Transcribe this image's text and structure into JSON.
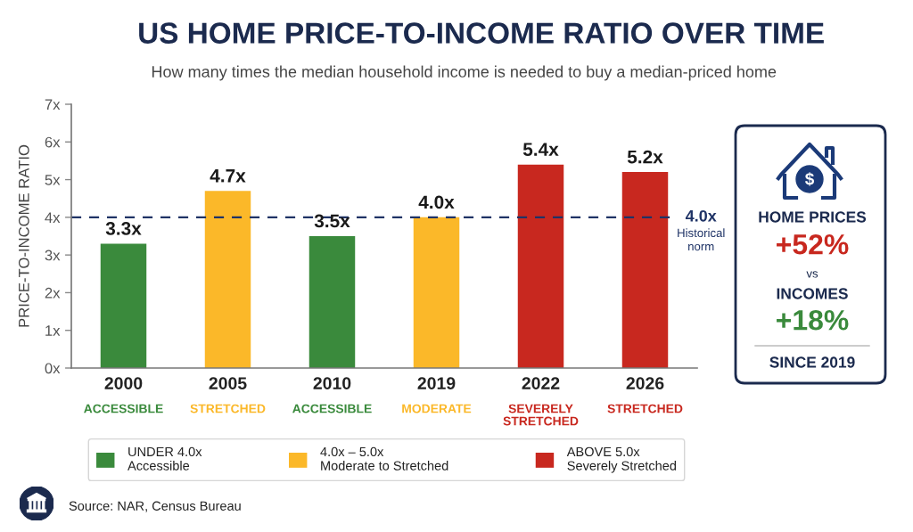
{
  "chart_data": [
    {
      "type": "bar",
      "title": "US HOME PRICE-TO-INCOME RATIO OVER TIME",
      "subtitle": "How many times the median household income is needed to buy a median-priced home",
      "ylabel": "PRICE-TO-INCOME RATIO",
      "categories": [
        "2000",
        "2005",
        "2010",
        "2019",
        "2022",
        "2026"
      ],
      "series": [
        {
          "name": "UNDER 4.0x\nAccessible",
          "color": "#3a8a3c",
          "values": [
            3.3,
            null,
            3.5,
            null,
            null,
            null
          ],
          "value_labels": [
            "3.3x",
            null,
            "3.5x",
            null,
            null,
            null
          ]
        },
        {
          "name": "4.0x – 5.0x\nModerate to Stretched",
          "color": "#fbb829",
          "values": [
            null,
            4.7,
            null,
            4.0,
            null,
            null
          ],
          "value_labels": [
            null,
            "4.7x",
            null,
            "4.0x",
            null,
            null
          ]
        },
        {
          "name": "ABOVE 5.0x\nSeverely Stretched",
          "color": "#c8281f",
          "values": [
            null,
            null,
            null,
            null,
            5.4,
            5.2
          ],
          "value_labels": [
            null,
            null,
            null,
            null,
            "5.4x",
            "5.2x"
          ]
        }
      ],
      "stacked": true,
      "ylim": [
        0,
        7
      ],
      "yticks": [
        {
          "value": 0,
          "label": "0x"
        },
        {
          "value": 1,
          "label": "1x"
        },
        {
          "value": 2,
          "label": "2x"
        },
        {
          "value": 3,
          "label": "3x"
        },
        {
          "value": 4,
          "label": "4x"
        },
        {
          "value": 5,
          "label": "5x"
        },
        {
          "value": 6,
          "label": "6x"
        },
        {
          "value": 7,
          "label": "7x"
        }
      ],
      "ref_lines": [
        {
          "axis": "y",
          "value": 4.0,
          "label": "4.0x\nHistorical\nnorm",
          "color": "#1f3366",
          "line_style": "dashed"
        }
      ],
      "annotations": [
        "ACCESSIBLE",
        "STRETCHED",
        "ACCESSIBLE",
        "MODERATE",
        "SEVERELY\nSTRETCHED",
        "STRETCHED",
        "Source: NAR, Census Bureau"
      ],
      "legend": "bottom"
    },
    {
      "type": "other",
      "annotations": [
        "HOME PRICES",
        "+52%",
        "vs",
        "INCOMES",
        "+18%",
        "SINCE 2019"
      ],
      "colors": [
        "#1b2a4e",
        "#c8281f",
        "#1b2a4e",
        "#1b2a4e",
        "#3a8a3c",
        "#1b2a4e"
      ]
    }
  ]
}
